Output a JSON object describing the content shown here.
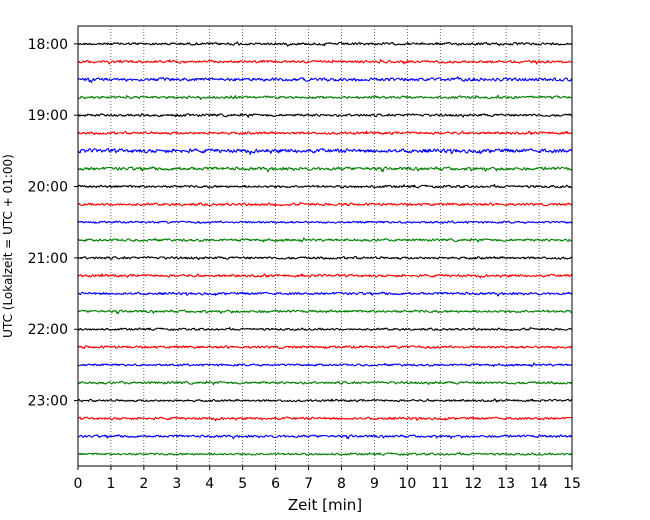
{
  "chart_data": {
    "type": "line",
    "title": "",
    "xlabel": "Zeit  [min]",
    "ylabel": "UTC (Lokalzeit = UTC + 01:00)",
    "xlim": [
      0,
      15
    ],
    "x_ticks": [
      "0",
      "1",
      "2",
      "3",
      "4",
      "5",
      "6",
      "7",
      "8",
      "9",
      "10",
      "11",
      "12",
      "13",
      "14",
      "15"
    ],
    "y_ticks": [
      "18:00",
      "19:00",
      "20:00",
      "21:00",
      "22:00",
      "23:00"
    ],
    "ylim_start": "17:45",
    "ylim_end": "23:55",
    "trace_interval_minutes": 15,
    "grid": "vertical dotted at each minute",
    "legend": "none",
    "trace_colors": [
      "#000000",
      "#ff0000",
      "#0000ff",
      "#008000"
    ],
    "traces": [
      {
        "start": "18:00",
        "color": "#000000",
        "amplitude": 0.35
      },
      {
        "start": "18:15",
        "color": "#ff0000",
        "amplitude": 0.35
      },
      {
        "start": "18:30",
        "color": "#0000ff",
        "amplitude": 0.45
      },
      {
        "start": "18:45",
        "color": "#008000",
        "amplitude": 0.35
      },
      {
        "start": "19:00",
        "color": "#000000",
        "amplitude": 0.35
      },
      {
        "start": "19:15",
        "color": "#ff0000",
        "amplitude": 0.35
      },
      {
        "start": "19:30",
        "color": "#0000ff",
        "amplitude": 0.55
      },
      {
        "start": "19:45",
        "color": "#008000",
        "amplitude": 0.45
      },
      {
        "start": "20:00",
        "color": "#000000",
        "amplitude": 0.35
      },
      {
        "start": "20:15",
        "color": "#ff0000",
        "amplitude": 0.35
      },
      {
        "start": "20:30",
        "color": "#0000ff",
        "amplitude": 0.3
      },
      {
        "start": "20:45",
        "color": "#008000",
        "amplitude": 0.35
      },
      {
        "start": "21:00",
        "color": "#000000",
        "amplitude": 0.35
      },
      {
        "start": "21:15",
        "color": "#ff0000",
        "amplitude": 0.35
      },
      {
        "start": "21:30",
        "color": "#0000ff",
        "amplitude": 0.35
      },
      {
        "start": "21:45",
        "color": "#008000",
        "amplitude": 0.35
      },
      {
        "start": "22:00",
        "color": "#000000",
        "amplitude": 0.3
      },
      {
        "start": "22:15",
        "color": "#ff0000",
        "amplitude": 0.35
      },
      {
        "start": "22:30",
        "color": "#0000ff",
        "amplitude": 0.3
      },
      {
        "start": "22:45",
        "color": "#008000",
        "amplitude": 0.35
      },
      {
        "start": "23:00",
        "color": "#000000",
        "amplitude": 0.3
      },
      {
        "start": "23:15",
        "color": "#ff0000",
        "amplitude": 0.35
      },
      {
        "start": "23:30",
        "color": "#0000ff",
        "amplitude": 0.35
      },
      {
        "start": "23:45",
        "color": "#008000",
        "amplitude": 0.3
      }
    ]
  }
}
